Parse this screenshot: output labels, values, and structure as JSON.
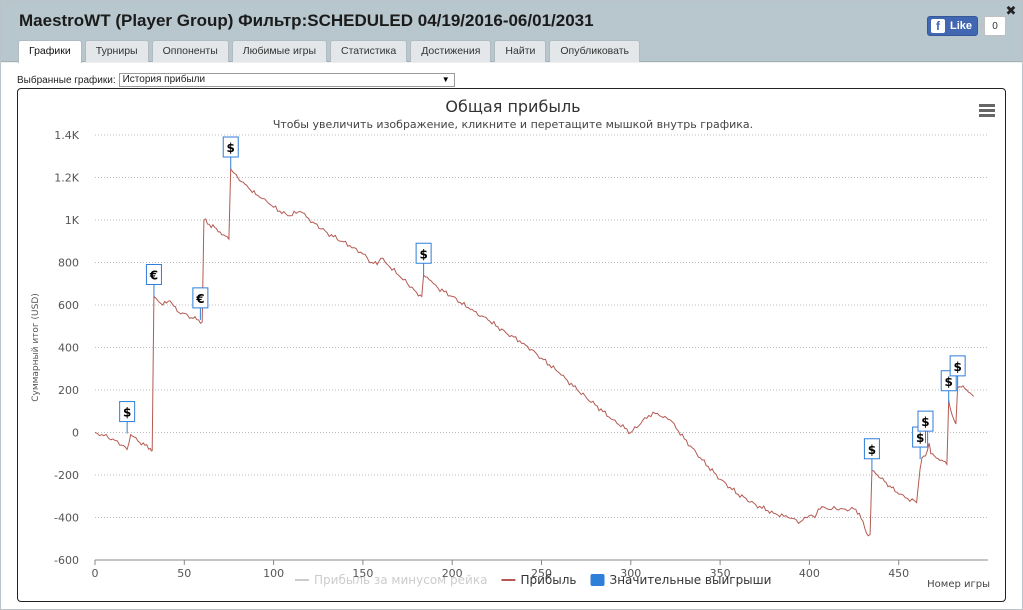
{
  "header": {
    "title": "MaestroWT (Player Group) Фильтр:SCHEDULED 04/19/2016-06/01/2031",
    "fb_like_label": "Like",
    "fb_count": "0"
  },
  "tabs": [
    {
      "label": "Графики",
      "active": true
    },
    {
      "label": "Турниры"
    },
    {
      "label": "Оппоненты"
    },
    {
      "label": "Любимые игры"
    },
    {
      "label": "Статистика"
    },
    {
      "label": "Достижения"
    },
    {
      "label": "Найти"
    },
    {
      "label": "Опубликовать"
    }
  ],
  "selector": {
    "label": "Выбранные графики:",
    "value": "История прибыли"
  },
  "chart_data": {
    "type": "line",
    "title": "Общая прибыль",
    "subtitle": "Чтобы увеличить изображение, кликните и перетащите мышкой внутрь графика.",
    "xlabel": "Номер игры",
    "ylabel": "Суммарный итог (USD)",
    "xlim": [
      0,
      500
    ],
    "ylim": [
      -600,
      1400
    ],
    "x_ticks": [
      0,
      50,
      100,
      150,
      200,
      250,
      300,
      350,
      400,
      450
    ],
    "y_ticks": [
      {
        "value": 1400,
        "label": "1.4K"
      },
      {
        "value": 1200,
        "label": "1.2K"
      },
      {
        "value": 1000,
        "label": "1K"
      },
      {
        "value": 800,
        "label": "800"
      },
      {
        "value": 600,
        "label": "600"
      },
      {
        "value": 400,
        "label": "400"
      },
      {
        "value": 200,
        "label": "200"
      },
      {
        "value": 0,
        "label": "0"
      },
      {
        "value": -200,
        "label": "-200"
      },
      {
        "value": -400,
        "label": "-400"
      },
      {
        "value": -600,
        "label": "-600"
      }
    ],
    "grid": "horizontal dotted",
    "legend_placement": "bottom-center",
    "series": [
      {
        "name": "Прибыль за минусом рейка",
        "color": "#cccccc",
        "visible": false
      },
      {
        "name": "Прибыль",
        "color": "#b55a52",
        "x": [
          0,
          5,
          10,
          15,
          18,
          20,
          24,
          28,
          31,
          32,
          33,
          38,
          42,
          46,
          50,
          54,
          58,
          60,
          61,
          64,
          68,
          72,
          75,
          76,
          78,
          82,
          86,
          90,
          95,
          100,
          108,
          115,
          122,
          130,
          138,
          145,
          150,
          155,
          158,
          160,
          165,
          170,
          175,
          180,
          183,
          184,
          187,
          192,
          200,
          210,
          220,
          230,
          240,
          250,
          260,
          270,
          280,
          290,
          300,
          310,
          315,
          318,
          320,
          322,
          330,
          340,
          350,
          360,
          370,
          380,
          388,
          395,
          400,
          403,
          405,
          408,
          410,
          415,
          420,
          425,
          428,
          432,
          434,
          435,
          438,
          442,
          446,
          450,
          455,
          460,
          462,
          463,
          465,
          467,
          468,
          470,
          474,
          477,
          478,
          480,
          482,
          483,
          486,
          489,
          492
        ],
        "y": [
          0,
          -15,
          -30,
          -60,
          -80,
          -10,
          -40,
          -60,
          -75,
          -85,
          640,
          600,
          620,
          570,
          560,
          540,
          530,
          520,
          1000,
          980,
          960,
          930,
          910,
          1240,
          1220,
          1180,
          1150,
          1120,
          1100,
          1060,
          1020,
          1040,
          990,
          940,
          900,
          870,
          840,
          800,
          790,
          820,
          780,
          740,
          700,
          660,
          640,
          740,
          720,
          680,
          640,
          580,
          530,
          470,
          420,
          350,
          280,
          200,
          130,
          60,
          0,
          80,
          90,
          70,
          70,
          60,
          -30,
          -130,
          -220,
          -290,
          -340,
          -380,
          -400,
          -420,
          -390,
          -400,
          -360,
          -350,
          -360,
          -360,
          -360,
          -360,
          -380,
          -475,
          -480,
          -180,
          -200,
          -230,
          -260,
          -290,
          -310,
          -330,
          -170,
          -120,
          -110,
          -50,
          -100,
          -110,
          -130,
          -150,
          150,
          80,
          40,
          210,
          220,
          190,
          170
        ]
      },
      {
        "name": "Значительные выигрыши",
        "color": "#2f7ed8",
        "marker": "flag",
        "points": [
          {
            "x": 18,
            "y": -5,
            "label": "$"
          },
          {
            "x": 33,
            "y": 640,
            "label": "€"
          },
          {
            "x": 59,
            "y": 530,
            "label": "€"
          },
          {
            "x": 76,
            "y": 1240,
            "label": "$"
          },
          {
            "x": 184,
            "y": 740,
            "label": "$"
          },
          {
            "x": 435,
            "y": -180,
            "label": "$"
          },
          {
            "x": 462,
            "y": -125,
            "label": "$"
          },
          {
            "x": 465,
            "y": -50,
            "label": "$"
          },
          {
            "x": 478,
            "y": 140,
            "label": "$"
          },
          {
            "x": 483,
            "y": 210,
            "label": "$"
          }
        ]
      }
    ]
  }
}
